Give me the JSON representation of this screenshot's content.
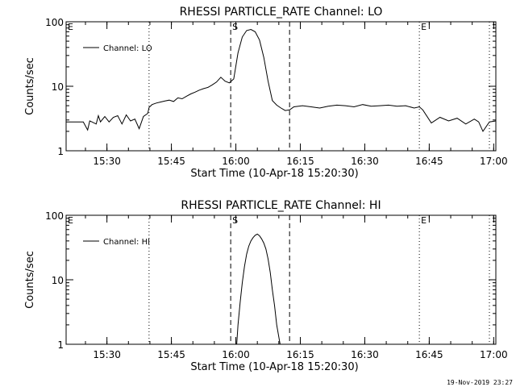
{
  "timestamp": "19-Nov-2019 23:27",
  "chart_data": [
    {
      "type": "line",
      "title": "RHESSI PARTICLE_RATE Channel: LO",
      "xlabel": "Start Time (10-Apr-18 15:20:30)",
      "ylabel": "Counts/sec",
      "y_scale": "log",
      "ylim": [
        1,
        100
      ],
      "y_ticks": [
        "1",
        "10",
        "100"
      ],
      "x_unit": "minutes since 15:20:30",
      "xlim": [
        0,
        100
      ],
      "x_ticks": [
        {
          "x": 9.5,
          "label": "15:30"
        },
        {
          "x": 24.5,
          "label": "15:45"
        },
        {
          "x": 39.5,
          "label": "16:00"
        },
        {
          "x": 54.5,
          "label": "16:15"
        },
        {
          "x": 69.5,
          "label": "16:30"
        },
        {
          "x": 84.5,
          "label": "16:45"
        },
        {
          "x": 99.5,
          "label": "17:00"
        }
      ],
      "legend": {
        "label": "Channel: LO",
        "position": "top-left"
      },
      "markers": [
        {
          "x": 0,
          "label": "E",
          "style": "dotted"
        },
        {
          "x": 19.3,
          "label": "",
          "style": "dotted"
        },
        {
          "x": 38.3,
          "label": "S",
          "style": "dashed"
        },
        {
          "x": 52.0,
          "label": "",
          "style": "dashed"
        },
        {
          "x": 82.2,
          "label": "E",
          "style": "dotted"
        },
        {
          "x": 98.5,
          "label": "",
          "style": "dotted"
        }
      ],
      "series": [
        {
          "name": "Channel: LO",
          "x": [
            0,
            2,
            4,
            5,
            5.5,
            6,
            7,
            7.5,
            8,
            9,
            10,
            11,
            12,
            13,
            14,
            15,
            16,
            17,
            18,
            19,
            19.3,
            20,
            21,
            22,
            23,
            24,
            25,
            26,
            27,
            28,
            29,
            30,
            31,
            32,
            33,
            34,
            35,
            36,
            37,
            38,
            39,
            40,
            41,
            42,
            43,
            44,
            45,
            46,
            47,
            48,
            49,
            50,
            51,
            52,
            53,
            55,
            57,
            59,
            61,
            63,
            65,
            67,
            69,
            71,
            73,
            75,
            77,
            79,
            81,
            82.2,
            83,
            85,
            87,
            89,
            91,
            93,
            95,
            96,
            97,
            98.5,
            100
          ],
          "y": [
            2.8,
            2.8,
            2.8,
            2.1,
            2.9,
            2.8,
            2.6,
            3.5,
            2.8,
            3.4,
            2.8,
            3.3,
            3.5,
            2.6,
            3.6,
            2.9,
            3.1,
            2.2,
            3.4,
            3.8,
            4.7,
            5.2,
            5.5,
            5.7,
            5.9,
            6.1,
            5.8,
            6.6,
            6.4,
            7.0,
            7.6,
            8.1,
            8.7,
            9.2,
            9.6,
            10.5,
            11.6,
            13.8,
            12.0,
            11.3,
            13.0,
            33.0,
            58.0,
            73.0,
            76.0,
            70.0,
            52.0,
            28.0,
            12.0,
            6.0,
            5.1,
            4.6,
            4.2,
            4.3,
            4.8,
            5.0,
            4.8,
            4.6,
            4.9,
            5.1,
            5.0,
            4.8,
            5.2,
            4.9,
            5.0,
            5.1,
            4.9,
            5.0,
            4.6,
            4.8,
            4.3,
            2.7,
            3.3,
            2.9,
            3.2,
            2.6,
            3.1,
            2.8,
            2.0,
            2.8,
            2.9
          ]
        }
      ]
    },
    {
      "type": "line",
      "title": "RHESSI PARTICLE_RATE Channel: HI",
      "xlabel": "Start Time (10-Apr-18 15:20:30)",
      "ylabel": "Counts/sec",
      "y_scale": "log",
      "ylim": [
        1,
        100
      ],
      "y_ticks": [
        "1",
        "10",
        "100"
      ],
      "x_unit": "minutes since 15:20:30",
      "xlim": [
        0,
        100
      ],
      "x_ticks": [
        {
          "x": 9.5,
          "label": "15:30"
        },
        {
          "x": 24.5,
          "label": "15:45"
        },
        {
          "x": 39.5,
          "label": "16:00"
        },
        {
          "x": 54.5,
          "label": "16:15"
        },
        {
          "x": 69.5,
          "label": "16:30"
        },
        {
          "x": 84.5,
          "label": "16:45"
        },
        {
          "x": 99.5,
          "label": "17:00"
        }
      ],
      "legend": {
        "label": "Channel: HI",
        "position": "top-left"
      },
      "markers": [
        {
          "x": 0,
          "label": "E",
          "style": "dotted"
        },
        {
          "x": 19.3,
          "label": "",
          "style": "dotted"
        },
        {
          "x": 38.3,
          "label": "S",
          "style": "dashed"
        },
        {
          "x": 52.0,
          "label": "",
          "style": "dashed"
        },
        {
          "x": 82.2,
          "label": "E",
          "style": "dotted"
        },
        {
          "x": 98.5,
          "label": "",
          "style": "dotted"
        }
      ],
      "series": [
        {
          "name": "Channel: HI",
          "x": [
            39.7,
            40,
            40.5,
            41,
            41.5,
            42,
            42.5,
            43,
            43.5,
            44,
            44.5,
            45,
            45.5,
            46,
            46.5,
            47,
            47.5,
            48,
            48.5,
            49,
            49.8
          ],
          "y": [
            1,
            2,
            4.5,
            9,
            16,
            25,
            33,
            40,
            45,
            49,
            51,
            48,
            43,
            37,
            30,
            21,
            13,
            7,
            4,
            2,
            1
          ]
        }
      ]
    }
  ]
}
